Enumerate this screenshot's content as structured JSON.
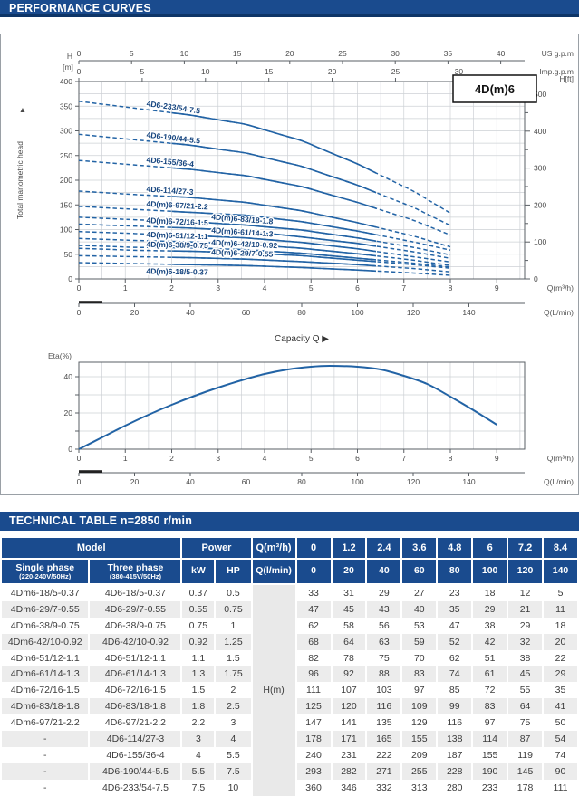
{
  "page": {
    "performance_header": "PERFORMANCE CURVES",
    "technical_header": "TECHNICAL TABLE n=2850 r/min"
  },
  "colors": {
    "navy_bar": "#1a4b8e",
    "navy_bar_edge": "#0e3567",
    "curve_blue": "#2263a5",
    "label_navy": "#16457f",
    "grid": "#cdd1d5",
    "axis": "#5a5f64",
    "stripe": "#ececec"
  },
  "chart_data": [
    {
      "type": "line",
      "name": "head-capacity-curves",
      "title_box": "4D(m)6",
      "x_caption": "Capacity Q",
      "y_axis_left": {
        "label_line1": "H",
        "label_line2": "[m]",
        "axis_title": "Total manometric head",
        "range": [
          0,
          400
        ],
        "tick_step": 50,
        "grid_step": 25
      },
      "y_axis_right": {
        "label": "H[ft]",
        "range": [
          0,
          500
        ],
        "tick_step": 100,
        "minor_step": 50
      },
      "x_axes": {
        "us_gpm": {
          "label": "US g.p.m",
          "ticks": [
            0,
            5,
            10,
            15,
            20,
            25,
            30,
            35,
            40
          ]
        },
        "imp_gpm": {
          "label": "Imp.g.p.m",
          "ticks": [
            0,
            5,
            10,
            15,
            20,
            25,
            30
          ]
        },
        "m3h": {
          "label": "Q(m³/h)",
          "ticks": [
            0,
            1,
            2,
            3,
            4,
            5,
            6,
            7,
            8,
            9
          ]
        },
        "lmin": {
          "label": "Q(L/min)",
          "ticks": [
            0,
            20,
            40,
            60,
            80,
            100,
            120,
            140
          ]
        }
      },
      "q_values": [
        0,
        1.2,
        2.4,
        3.6,
        4.8,
        6,
        7.2,
        8.4
      ],
      "series": [
        {
          "name": "4D6-233/54-7.5",
          "values": [
            360,
            346,
            332,
            313,
            280,
            233,
            178,
            111
          ],
          "label_side": "left"
        },
        {
          "name": "4D6-190/44-5.5",
          "values": [
            293,
            282,
            271,
            255,
            228,
            190,
            145,
            90
          ],
          "label_side": "left"
        },
        {
          "name": "4D6-155/36-4",
          "values": [
            240,
            231,
            222,
            209,
            187,
            155,
            119,
            74
          ],
          "label_side": "left"
        },
        {
          "name": "4D6-114/27-3",
          "values": [
            178,
            171,
            165,
            155,
            138,
            114,
            87,
            54
          ],
          "label_side": "left"
        },
        {
          "name": "4D(m)6-97/21-2.2",
          "values": [
            147,
            141,
            135,
            129,
            116,
            97,
            75,
            50
          ],
          "label_side": "left"
        },
        {
          "name": "4D(m)6-83/18-1.8",
          "values": [
            125,
            120,
            116,
            109,
            99,
            83,
            64,
            41
          ],
          "label_side": "right"
        },
        {
          "name": "4D(m)6-72/16-1.5",
          "values": [
            111,
            107,
            103,
            97,
            85,
            72,
            55,
            35
          ],
          "label_side": "left"
        },
        {
          "name": "4D(m)6-61/14-1.3",
          "values": [
            96,
            92,
            88,
            83,
            74,
            61,
            45,
            29
          ],
          "label_side": "right"
        },
        {
          "name": "4D(m)6-51/12-1.1",
          "values": [
            82,
            78,
            75,
            70,
            62,
            51,
            38,
            22
          ],
          "label_side": "left"
        },
        {
          "name": "4D(m)6-42/10-0.92",
          "values": [
            68,
            64,
            63,
            59,
            52,
            42,
            32,
            20
          ],
          "label_side": "right"
        },
        {
          "name": "4D(m)6-38/9-0.75",
          "values": [
            62,
            58,
            56,
            53,
            47,
            38,
            29,
            18
          ],
          "label_side": "left"
        },
        {
          "name": "4D(m)6-29/7-0.55",
          "values": [
            47,
            45,
            43,
            40,
            35,
            29,
            21,
            11
          ],
          "label_side": "right"
        },
        {
          "name": "4D(m)6-18/5-0.37",
          "values": [
            33,
            31,
            29,
            27,
            23,
            18,
            12,
            5
          ],
          "label_side": "left_below"
        }
      ]
    },
    {
      "type": "line",
      "name": "efficiency-curve",
      "ylabel": "Eta(%)",
      "yticks": [
        0,
        20,
        40
      ],
      "grid_step": 10,
      "x_axes": {
        "m3h": {
          "label": "Q(m³/h)",
          "ticks": [
            0,
            1,
            2,
            3,
            4,
            5,
            6,
            7,
            8,
            9
          ]
        },
        "lmin": {
          "label": "Q(L/min)",
          "ticks": [
            0,
            20,
            40,
            60,
            80,
            100,
            120,
            140
          ]
        }
      },
      "points": [
        [
          0,
          0
        ],
        [
          0.5,
          6.5
        ],
        [
          1,
          13
        ],
        [
          1.5,
          19
        ],
        [
          2,
          24.5
        ],
        [
          2.5,
          29.5
        ],
        [
          3,
          34
        ],
        [
          3.5,
          38
        ],
        [
          4,
          41.5
        ],
        [
          4.5,
          44
        ],
        [
          5,
          45.5
        ],
        [
          5.4,
          46
        ],
        [
          6,
          45.5
        ],
        [
          6.5,
          44
        ],
        [
          7,
          40.5
        ],
        [
          7.5,
          36
        ],
        [
          8,
          29
        ],
        [
          8.5,
          21.5
        ],
        [
          9,
          13.5
        ]
      ]
    }
  ],
  "table": {
    "header_model": "Model",
    "header_power": "Power",
    "header_qm3h": "Q(m³/h)",
    "header_qlmin": "Q(l/min)",
    "single_phase_line1": "Single phase",
    "single_phase_line2": "(220-240V/50Hz)",
    "three_phase_line1": "Three phase",
    "three_phase_line2": "(380-415V/50Hz)",
    "kw": "kW",
    "hp": "HP",
    "h_unit": "H(m)",
    "q_m3h_values": [
      "0",
      "1.2",
      "2.4",
      "3.6",
      "4.8",
      "6",
      "7.2",
      "8.4"
    ],
    "q_lmin_values": [
      "0",
      "20",
      "40",
      "60",
      "80",
      "100",
      "120",
      "140"
    ],
    "rows": [
      {
        "single": "4Dm6-18/5-0.37",
        "three": "4D6-18/5-0.37",
        "kw": "0.37",
        "hp": "0.5",
        "h": [
          "33",
          "31",
          "29",
          "27",
          "23",
          "18",
          "12",
          "5"
        ]
      },
      {
        "single": "4Dm6-29/7-0.55",
        "three": "4D6-29/7-0.55",
        "kw": "0.55",
        "hp": "0.75",
        "h": [
          "47",
          "45",
          "43",
          "40",
          "35",
          "29",
          "21",
          "11"
        ]
      },
      {
        "single": "4Dm6-38/9-0.75",
        "three": "4D6-38/9-0.75",
        "kw": "0.75",
        "hp": "1",
        "h": [
          "62",
          "58",
          "56",
          "53",
          "47",
          "38",
          "29",
          "18"
        ]
      },
      {
        "single": "4Dm6-42/10-0.92",
        "three": "4D6-42/10-0.92",
        "kw": "0.92",
        "hp": "1.25",
        "h": [
          "68",
          "64",
          "63",
          "59",
          "52",
          "42",
          "32",
          "20"
        ]
      },
      {
        "single": "4Dm6-51/12-1.1",
        "three": "4D6-51/12-1.1",
        "kw": "1.1",
        "hp": "1.5",
        "h": [
          "82",
          "78",
          "75",
          "70",
          "62",
          "51",
          "38",
          "22"
        ]
      },
      {
        "single": "4Dm6-61/14-1.3",
        "three": "4D6-61/14-1.3",
        "kw": "1.3",
        "hp": "1.75",
        "h": [
          "96",
          "92",
          "88",
          "83",
          "74",
          "61",
          "45",
          "29"
        ]
      },
      {
        "single": "4Dm6-72/16-1.5",
        "three": "4D6-72/16-1.5",
        "kw": "1.5",
        "hp": "2",
        "h": [
          "111",
          "107",
          "103",
          "97",
          "85",
          "72",
          "55",
          "35"
        ]
      },
      {
        "single": "4Dm6-83/18-1.8",
        "three": "4D6-83/18-1.8",
        "kw": "1.8",
        "hp": "2.5",
        "h": [
          "125",
          "120",
          "116",
          "109",
          "99",
          "83",
          "64",
          "41"
        ]
      },
      {
        "single": "4Dm6-97/21-2.2",
        "three": "4D6-97/21-2.2",
        "kw": "2.2",
        "hp": "3",
        "h": [
          "147",
          "141",
          "135",
          "129",
          "116",
          "97",
          "75",
          "50"
        ]
      },
      {
        "single": "-",
        "three": "4D6-114/27-3",
        "kw": "3",
        "hp": "4",
        "h": [
          "178",
          "171",
          "165",
          "155",
          "138",
          "114",
          "87",
          "54"
        ]
      },
      {
        "single": "-",
        "three": "4D6-155/36-4",
        "kw": "4",
        "hp": "5.5",
        "h": [
          "240",
          "231",
          "222",
          "209",
          "187",
          "155",
          "119",
          "74"
        ]
      },
      {
        "single": "-",
        "three": "4D6-190/44-5.5",
        "kw": "5.5",
        "hp": "7.5",
        "h": [
          "293",
          "282",
          "271",
          "255",
          "228",
          "190",
          "145",
          "90"
        ]
      },
      {
        "single": "-",
        "three": "4D6-233/54-7.5",
        "kw": "7.5",
        "hp": "10",
        "h": [
          "360",
          "346",
          "332",
          "313",
          "280",
          "233",
          "178",
          "111"
        ]
      }
    ]
  }
}
